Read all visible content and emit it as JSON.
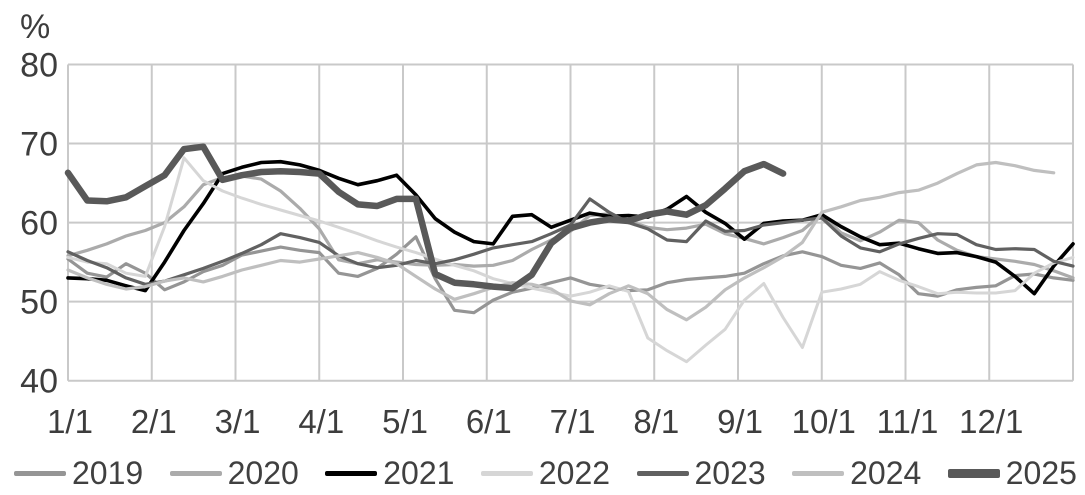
{
  "chart_data": {
    "type": "line",
    "title": "",
    "unit": "%",
    "grid": true,
    "background": "#ffffff",
    "grid_color": "#c9c9c9",
    "label_color": "#3d3d3d",
    "y_axis": {
      "min": 40,
      "max": 80,
      "ticks": [
        40,
        50,
        60,
        70,
        80
      ]
    },
    "x_axis": {
      "tick_labels": [
        "1/1",
        "2/1",
        "3/1",
        "4/1",
        "5/1",
        "6/1",
        "7/1",
        "8/1",
        "9/1",
        "10/1",
        "11/1",
        "12/1"
      ],
      "cadence": "weekly",
      "weeks_per_year": 52
    },
    "legend_position": "bottom",
    "series": [
      {
        "name": "2019",
        "color": "#959595",
        "width": 3.2,
        "values": [
          55.4,
          53.6,
          53.1,
          54.8,
          53.6,
          51.5,
          52.5,
          53.8,
          54.6,
          55.9,
          56.4,
          56.9,
          56.5,
          56.2,
          53.6,
          53.2,
          54.2,
          56.0,
          58.2,
          52.9,
          48.9,
          48.6,
          50.2,
          51.2,
          51.7,
          52.4,
          53.0,
          52.2,
          51.8,
          51.4,
          51.5,
          52.4,
          52.8,
          53.0,
          53.2,
          53.6,
          54.8,
          55.8,
          56.3,
          55.7,
          54.6,
          54.2,
          54.9,
          53.4,
          51.0,
          50.7,
          51.5,
          51.8,
          52.0,
          53.3,
          53.5,
          53.0,
          52.7
        ]
      },
      {
        "name": "2020",
        "color": "#ababab",
        "width": 3.2,
        "values": [
          55.8,
          56.5,
          57.3,
          58.3,
          59.0,
          60.0,
          62.0,
          64.8,
          65.7,
          65.9,
          65.5,
          64.0,
          61.8,
          59.2,
          55.3,
          54.8,
          55.3,
          55.0,
          54.7,
          54.6,
          54.7,
          54.5,
          54.6,
          55.2,
          56.6,
          57.8,
          58.9,
          60.9,
          61.1,
          60.2,
          59.4,
          59.1,
          59.3,
          59.8,
          58.6,
          58.0,
          57.3,
          58.1,
          59.0,
          61.1,
          58.7,
          57.7,
          58.8,
          60.3,
          60.0,
          57.8,
          56.5,
          55.7,
          55.4,
          55.1,
          54.7,
          53.9,
          53.0
        ]
      },
      {
        "name": "2021",
        "color": "#000000",
        "width": 3.6,
        "values": [
          53.0,
          52.9,
          52.7,
          52.0,
          51.4,
          55.0,
          59.0,
          62.4,
          66.2,
          67.0,
          67.6,
          67.7,
          67.3,
          66.6,
          65.6,
          64.8,
          65.3,
          66.0,
          63.5,
          60.5,
          58.8,
          57.6,
          57.3,
          60.8,
          61.0,
          59.4,
          60.3,
          61.2,
          60.8,
          60.9,
          60.7,
          61.7,
          63.3,
          61.3,
          59.9,
          57.9,
          59.9,
          60.2,
          60.3,
          61.0,
          59.5,
          58.2,
          57.2,
          57.4,
          56.7,
          56.1,
          56.2,
          55.7,
          55.0,
          53.2,
          51.0,
          54.5,
          57.3
        ]
      },
      {
        "name": "2022",
        "color": "#d6d6d6",
        "width": 3.0,
        "values": [
          55.6,
          55.0,
          54.8,
          53.6,
          53.2,
          59.5,
          68.2,
          65.3,
          64.0,
          63.1,
          62.3,
          61.6,
          60.9,
          60.2,
          59.4,
          58.6,
          57.7,
          56.9,
          56.2,
          55.4,
          54.6,
          53.9,
          52.9,
          52.3,
          51.7,
          51.2,
          50.7,
          51.2,
          52.0,
          51.3,
          45.4,
          43.8,
          42.4,
          44.5,
          46.5,
          50.2,
          52.3,
          48.0,
          44.2,
          51.2,
          51.6,
          52.2,
          53.8,
          52.7,
          51.9,
          51.0,
          51.2,
          51.1,
          51.1,
          51.4,
          53.6,
          54.9,
          55.6
        ]
      },
      {
        "name": "2023",
        "color": "#616161",
        "width": 3.2,
        "values": [
          56.3,
          55.2,
          54.3,
          53.0,
          52.2,
          52.6,
          53.4,
          54.2,
          55.1,
          56.1,
          57.2,
          58.6,
          58.1,
          57.5,
          55.8,
          54.8,
          54.3,
          54.6,
          55.2,
          54.8,
          55.3,
          56.0,
          56.8,
          57.2,
          57.6,
          58.6,
          59.7,
          63.0,
          61.3,
          60.0,
          59.2,
          57.8,
          57.6,
          60.2,
          58.9,
          59.0,
          59.7,
          60.0,
          60.3,
          60.6,
          58.3,
          56.8,
          56.3,
          57.3,
          58.0,
          58.6,
          58.5,
          57.2,
          56.6,
          56.7,
          56.6,
          55.1,
          54.5
        ]
      },
      {
        "name": "2024",
        "color": "#bfbfbf",
        "width": 3.2,
        "values": [
          54.0,
          53.0,
          52.2,
          51.6,
          51.9,
          52.6,
          53.0,
          52.5,
          53.2,
          54.0,
          54.6,
          55.2,
          55.0,
          55.4,
          55.8,
          56.2,
          55.6,
          54.8,
          53.2,
          51.6,
          50.3,
          51.0,
          51.8,
          52.4,
          52.2,
          51.6,
          50.1,
          49.6,
          51.0,
          52.0,
          51.0,
          49.0,
          47.7,
          49.3,
          51.5,
          53.0,
          54.3,
          55.7,
          57.5,
          61.3,
          62.0,
          62.8,
          63.2,
          63.8,
          64.1,
          65.0,
          66.2,
          67.3,
          67.6,
          67.2,
          66.6,
          66.3
        ]
      },
      {
        "name": "2025",
        "color": "#595959",
        "width": 6.5,
        "values": [
          66.3,
          62.8,
          62.7,
          63.2,
          64.6,
          66.0,
          69.3,
          69.6,
          65.4,
          66.0,
          66.4,
          66.5,
          66.4,
          66.2,
          63.9,
          62.3,
          62.1,
          63.0,
          63.0,
          53.5,
          52.4,
          52.2,
          51.9,
          51.7,
          53.4,
          57.4,
          59.3,
          60.0,
          60.4,
          60.2,
          61.0,
          61.4,
          61.0,
          62.2,
          64.3,
          66.5,
          67.4,
          66.2
        ]
      }
    ]
  },
  "axis": {
    "unit_label": "%"
  }
}
